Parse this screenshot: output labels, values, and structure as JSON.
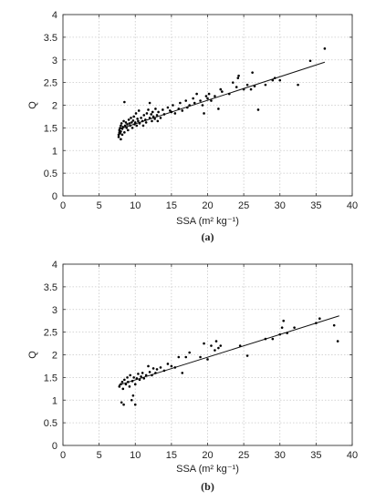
{
  "chart_data": [
    {
      "type": "scatter",
      "panel_label": "(a)",
      "xlabel": "SSA (m² kg⁻¹)",
      "ylabel": "Q",
      "xlim": [
        0,
        40
      ],
      "ylim": [
        0,
        4
      ],
      "xticks": [
        0,
        5,
        10,
        15,
        20,
        25,
        30,
        35,
        40
      ],
      "yticks": [
        0,
        0.5,
        1,
        1.5,
        2,
        2.5,
        3,
        3.5,
        4
      ],
      "grid": true,
      "fit_line": {
        "x": [
          7.7,
          36.2
        ],
        "y": [
          1.47,
          2.95
        ]
      },
      "points": [
        [
          7.7,
          1.3
        ],
        [
          7.7,
          1.35
        ],
        [
          7.8,
          1.4
        ],
        [
          7.8,
          1.45
        ],
        [
          7.9,
          1.38
        ],
        [
          7.9,
          1.5
        ],
        [
          8.0,
          1.25
        ],
        [
          8.0,
          1.55
        ],
        [
          8.0,
          1.42
        ],
        [
          8.1,
          1.6
        ],
        [
          8.2,
          1.35
        ],
        [
          8.2,
          1.48
        ],
        [
          8.3,
          1.52
        ],
        [
          8.4,
          1.65
        ],
        [
          8.5,
          1.4
        ],
        [
          8.5,
          2.07
        ],
        [
          8.6,
          1.55
        ],
        [
          8.7,
          1.62
        ],
        [
          8.8,
          1.5
        ],
        [
          8.9,
          1.58
        ],
        [
          9.0,
          1.45
        ],
        [
          9.1,
          1.68
        ],
        [
          9.2,
          1.6
        ],
        [
          9.3,
          1.55
        ],
        [
          9.4,
          1.72
        ],
        [
          9.5,
          1.62
        ],
        [
          9.6,
          1.5
        ],
        [
          9.7,
          1.66
        ],
        [
          9.8,
          1.75
        ],
        [
          9.9,
          1.58
        ],
        [
          10.0,
          1.62
        ],
        [
          10.1,
          1.82
        ],
        [
          10.2,
          1.55
        ],
        [
          10.3,
          1.7
        ],
        [
          10.4,
          1.65
        ],
        [
          10.5,
          1.88
        ],
        [
          10.6,
          1.6
        ],
        [
          10.8,
          1.72
        ],
        [
          11.0,
          1.65
        ],
        [
          11.1,
          1.55
        ],
        [
          11.2,
          1.78
        ],
        [
          11.4,
          1.68
        ],
        [
          11.5,
          1.62
        ],
        [
          11.6,
          1.82
        ],
        [
          11.8,
          1.9
        ],
        [
          12.0,
          1.72
        ],
        [
          12.0,
          2.05
        ],
        [
          12.2,
          1.8
        ],
        [
          12.3,
          1.65
        ],
        [
          12.4,
          1.85
        ],
        [
          12.5,
          1.75
        ],
        [
          12.7,
          1.7
        ],
        [
          12.8,
          1.92
        ],
        [
          13.0,
          1.78
        ],
        [
          13.1,
          1.65
        ],
        [
          13.2,
          1.85
        ],
        [
          13.5,
          1.72
        ],
        [
          13.8,
          1.9
        ],
        [
          14.0,
          1.8
        ],
        [
          14.5,
          1.95
        ],
        [
          14.8,
          1.88
        ],
        [
          15.0,
          1.85
        ],
        [
          15.2,
          2.0
        ],
        [
          15.5,
          1.82
        ],
        [
          16.0,
          1.92
        ],
        [
          16.2,
          2.05
        ],
        [
          16.5,
          1.88
        ],
        [
          17.0,
          2.1
        ],
        [
          17.2,
          1.95
        ],
        [
          17.5,
          2.0
        ],
        [
          18.0,
          2.15
        ],
        [
          18.2,
          2.05
        ],
        [
          18.5,
          2.25
        ],
        [
          19.0,
          2.1
        ],
        [
          19.3,
          2.0
        ],
        [
          19.5,
          1.82
        ],
        [
          19.8,
          2.2
        ],
        [
          20.0,
          2.15
        ],
        [
          20.2,
          2.25
        ],
        [
          20.5,
          2.1
        ],
        [
          21.0,
          2.2
        ],
        [
          21.5,
          1.92
        ],
        [
          21.8,
          2.35
        ],
        [
          22.0,
          2.3
        ],
        [
          23.0,
          2.25
        ],
        [
          23.5,
          2.5
        ],
        [
          24.0,
          2.4
        ],
        [
          24.2,
          2.6
        ],
        [
          24.3,
          2.65
        ],
        [
          25.0,
          2.35
        ],
        [
          25.5,
          2.45
        ],
        [
          26.0,
          2.35
        ],
        [
          26.2,
          2.72
        ],
        [
          26.5,
          2.42
        ],
        [
          27.0,
          1.9
        ],
        [
          28.0,
          2.45
        ],
        [
          29.0,
          2.55
        ],
        [
          29.3,
          2.6
        ],
        [
          30.0,
          2.55
        ],
        [
          32.5,
          2.45
        ],
        [
          34.2,
          2.98
        ],
        [
          36.2,
          3.25
        ]
      ]
    },
    {
      "type": "scatter",
      "panel_label": "(b)",
      "xlabel": "SSA (m² kg⁻¹)",
      "ylabel": "Q",
      "xlim": [
        0,
        40
      ],
      "ylim": [
        0,
        4
      ],
      "xticks": [
        0,
        5,
        10,
        15,
        20,
        25,
        30,
        35,
        40
      ],
      "yticks": [
        0,
        0.5,
        1,
        1.5,
        2,
        2.5,
        3,
        3.5,
        4
      ],
      "grid": true,
      "fit_line": {
        "x": [
          7.7,
          38.2
        ],
        "y": [
          1.33,
          2.86
        ]
      },
      "points": [
        [
          7.8,
          1.3
        ],
        [
          8.0,
          1.35
        ],
        [
          8.1,
          0.95
        ],
        [
          8.2,
          1.4
        ],
        [
          8.3,
          1.25
        ],
        [
          8.4,
          0.9
        ],
        [
          8.5,
          1.45
        ],
        [
          8.7,
          1.35
        ],
        [
          8.9,
          1.5
        ],
        [
          9.0,
          1.4
        ],
        [
          9.2,
          1.3
        ],
        [
          9.3,
          1.55
        ],
        [
          9.5,
          1.0
        ],
        [
          9.6,
          1.42
        ],
        [
          9.7,
          1.1
        ],
        [
          9.8,
          1.5
        ],
        [
          10.0,
          1.35
        ],
        [
          10.0,
          0.9
        ],
        [
          10.2,
          1.48
        ],
        [
          10.4,
          1.58
        ],
        [
          10.6,
          1.45
        ],
        [
          10.8,
          1.52
        ],
        [
          11.0,
          1.6
        ],
        [
          11.2,
          1.48
        ],
        [
          11.5,
          1.55
        ],
        [
          11.8,
          1.75
        ],
        [
          12.0,
          1.62
        ],
        [
          12.3,
          1.55
        ],
        [
          12.5,
          1.7
        ],
        [
          12.8,
          1.6
        ],
        [
          13.0,
          1.68
        ],
        [
          13.5,
          1.72
        ],
        [
          14.0,
          1.65
        ],
        [
          14.5,
          1.8
        ],
        [
          15.0,
          1.75
        ],
        [
          15.5,
          1.72
        ],
        [
          16.0,
          1.95
        ],
        [
          16.5,
          1.6
        ],
        [
          17.0,
          1.95
        ],
        [
          17.5,
          2.05
        ],
        [
          19.0,
          1.95
        ],
        [
          19.5,
          2.25
        ],
        [
          20.0,
          1.9
        ],
        [
          20.5,
          2.2
        ],
        [
          21.0,
          2.1
        ],
        [
          21.2,
          2.3
        ],
        [
          21.5,
          2.15
        ],
        [
          21.8,
          2.2
        ],
        [
          24.5,
          2.2
        ],
        [
          25.5,
          1.98
        ],
        [
          28.0,
          2.35
        ],
        [
          29.0,
          2.35
        ],
        [
          30.0,
          2.45
        ],
        [
          30.3,
          2.6
        ],
        [
          30.5,
          2.75
        ],
        [
          31.0,
          2.48
        ],
        [
          32.0,
          2.6
        ],
        [
          35.0,
          2.7
        ],
        [
          35.5,
          2.8
        ],
        [
          37.5,
          2.65
        ],
        [
          38.0,
          2.3
        ]
      ]
    }
  ]
}
